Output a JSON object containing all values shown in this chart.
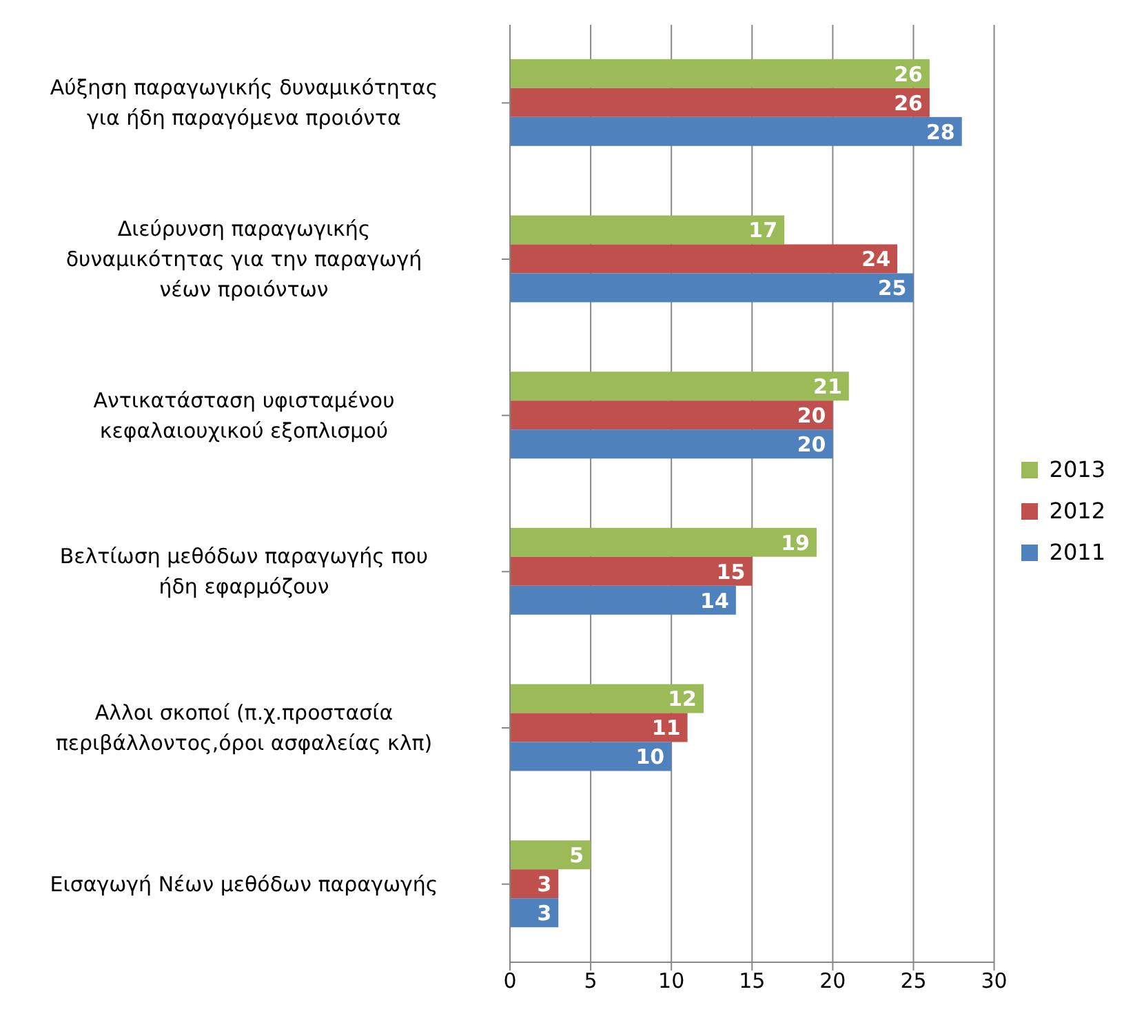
{
  "chart_data": {
    "type": "bar",
    "orientation": "horizontal",
    "categories": [
      "Αύξηση παραγωγικής δυναμικότητας για ήδη παραγόμενα προιόντα",
      "Διεύρυνση παραγωγικής δυναμικότητας για την παραγωγή νέων προιόντων",
      "Αντικατάσταση υφισταμένου κεφαλαιουχικού εξοπλισμού",
      "Βελτίωση μεθόδων παραγωγής που ήδη εφαρμόζουν",
      "Αλλοι σκοποί (π.χ.προστασία περιβάλλοντος,όροι ασφαλείας κλπ)",
      "Εισαγωγή Νέων μεθόδων παραγωγής"
    ],
    "series": [
      {
        "name": "2013",
        "color": "#9bbb59",
        "values": [
          26,
          17,
          21,
          19,
          12,
          5
        ]
      },
      {
        "name": "2012",
        "color": "#c0504d",
        "values": [
          26,
          24,
          20,
          15,
          11,
          3
        ]
      },
      {
        "name": "2011",
        "color": "#4f81bd",
        "values": [
          28,
          25,
          20,
          14,
          10,
          3
        ]
      }
    ],
    "xlim": [
      0,
      30
    ],
    "xticks": [
      0,
      5,
      10,
      15,
      20,
      25,
      30
    ],
    "grid": "x",
    "legend": "right",
    "data_labels": true
  }
}
